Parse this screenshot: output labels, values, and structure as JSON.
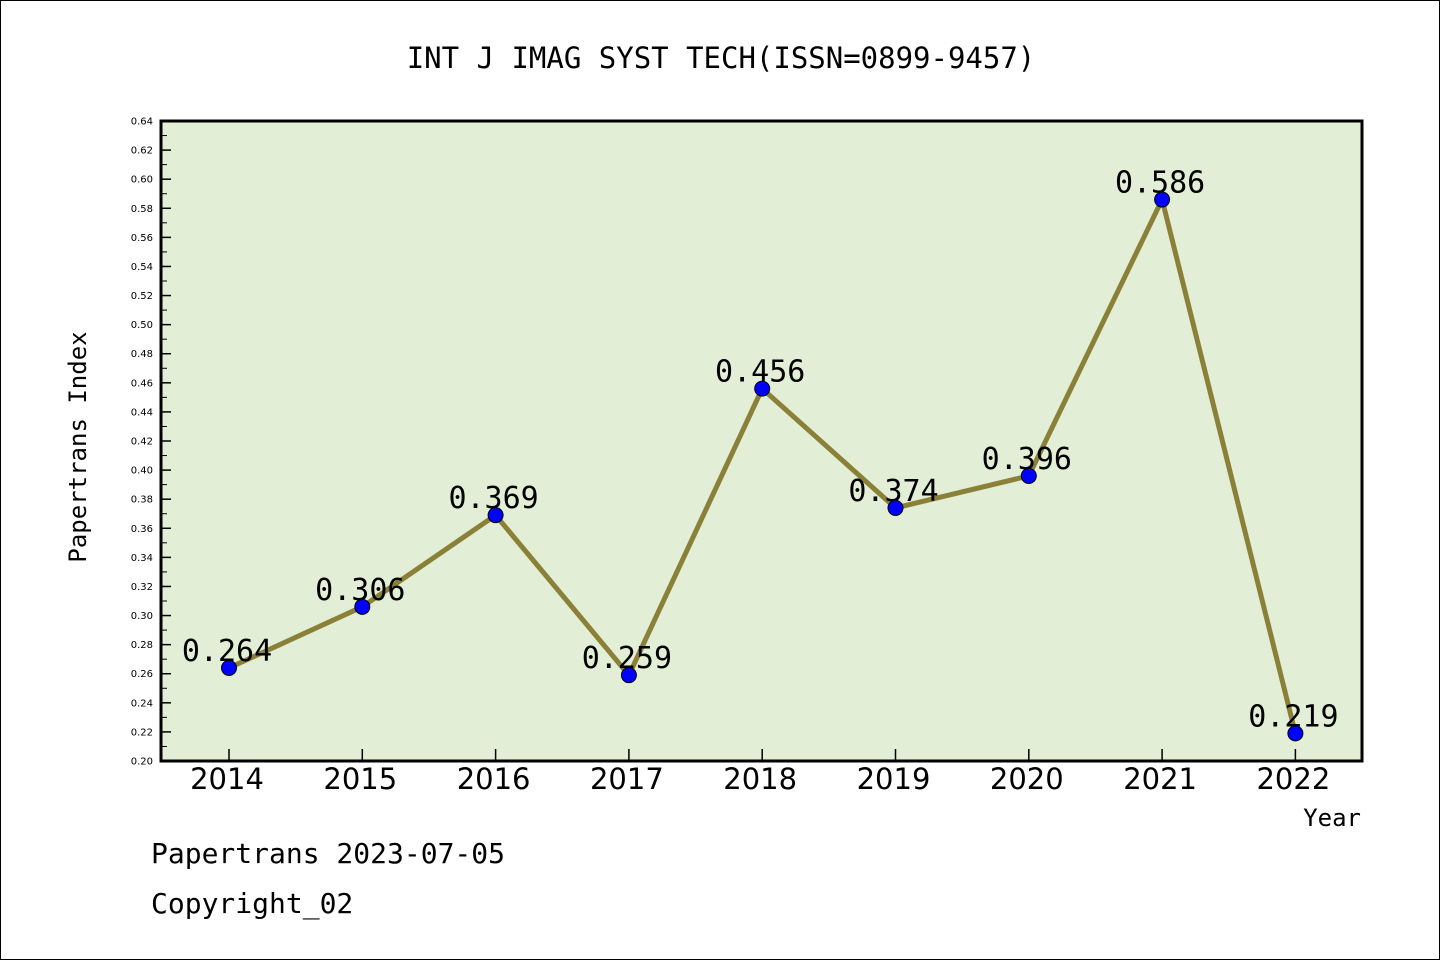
{
  "chart_data": {
    "type": "line",
    "title": "INT J IMAG SYST TECH(ISSN=0899-9457)",
    "xlabel": "Year",
    "ylabel": "Papertrans Index",
    "categories": [
      "2014",
      "2015",
      "2016",
      "2017",
      "2018",
      "2019",
      "2020",
      "2021",
      "2022"
    ],
    "series": [
      {
        "values": [
          0.264,
          0.306,
          0.369,
          0.259,
          0.456,
          0.374,
          0.396,
          0.586,
          0.219
        ],
        "labels": [
          "0.264",
          "0.306",
          "0.369",
          "0.259",
          "0.456",
          "0.374",
          "0.396",
          "0.586",
          "0.219"
        ],
        "line_color": "#8b8038",
        "marker_color": "#0000ff"
      }
    ],
    "ylim": [
      0.2,
      0.64
    ],
    "yticks": [
      "0.20",
      "0.22",
      "0.24",
      "0.26",
      "0.28",
      "0.30",
      "0.32",
      "0.34",
      "0.36",
      "0.38",
      "0.40",
      "0.42",
      "0.44",
      "0.46",
      "0.48",
      "0.50",
      "0.52",
      "0.54",
      "0.56",
      "0.58",
      "0.60",
      "0.62",
      "0.64"
    ],
    "plot_background": "#e2efd6",
    "grid": false,
    "legend": "none"
  },
  "footer": {
    "line1": "Papertrans 2023-07-05",
    "line2": "Copyright_02"
  }
}
